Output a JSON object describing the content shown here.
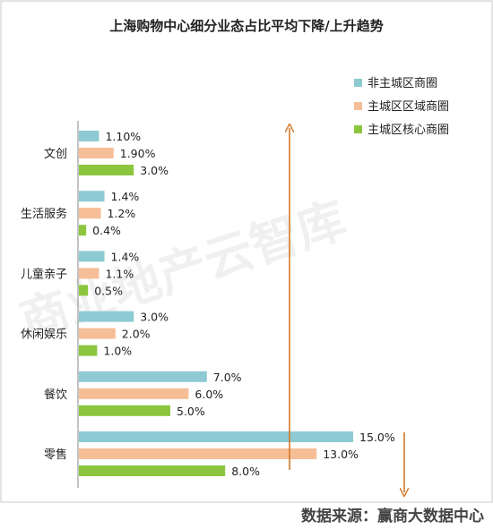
{
  "chart_data": {
    "type": "bar",
    "orientation": "horizontal",
    "title": "上海购物中心细分业态占比平均下降/上升趋势",
    "categories": [
      "文创",
      "生活服务",
      "儿童亲子",
      "休闲娱乐",
      "餐饮",
      "零售"
    ],
    "series": [
      {
        "name": "非主城区商圈",
        "color": "#8ecad3",
        "values": [
          1.1,
          1.4,
          1.4,
          3.0,
          7.0,
          15.0
        ],
        "labels": [
          "1.10%",
          "1.4%",
          "1.4%",
          "3.0%",
          "7.0%",
          "15.0%"
        ]
      },
      {
        "name": "主城区区域商圈",
        "color": "#f6be96",
        "values": [
          1.9,
          1.2,
          1.1,
          2.0,
          6.0,
          13.0
        ],
        "labels": [
          "1.90%",
          "1.2%",
          "1.1%",
          "2.0%",
          "6.0%",
          "13.0%"
        ]
      },
      {
        "name": "主城区核心商圈",
        "color": "#8cc63f",
        "values": [
          3.0,
          0.4,
          0.5,
          1.0,
          5.0,
          8.0
        ],
        "labels": [
          "3.0%",
          "0.4%",
          "0.5%",
          "1.0%",
          "5.0%",
          "8.0%"
        ]
      }
    ],
    "xlim": [
      0,
      15
    ],
    "grid": false,
    "legend_position": "top-right",
    "watermark": "商业地产云智库",
    "source": "数据来源：赢商大数据中心",
    "annotations": [
      {
        "type": "arrow",
        "direction": "up",
        "color": "#d4782a"
      },
      {
        "type": "arrow",
        "direction": "down",
        "color": "#d4782a"
      }
    ]
  }
}
